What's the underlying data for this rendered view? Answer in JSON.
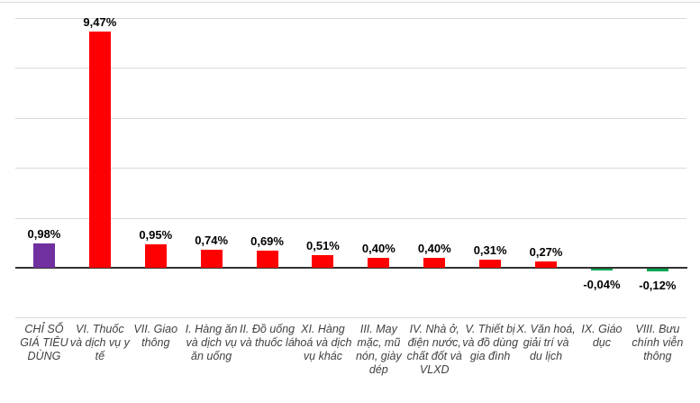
{
  "chart_data": {
    "type": "bar",
    "title": "",
    "xlabel": "",
    "ylabel": "",
    "categories": [
      "CHỈ SỐ GIÁ TIÊU DÙNG",
      "VI. Thuốc và dịch vụ y tế",
      "VII. Giao thông",
      "I. Hàng ăn và dịch vụ ăn uống",
      "II. Đồ uống và thuốc lá",
      "XI. Hàng hoá và dịch vụ khác",
      "III. May mặc, mũ nón, giày dép",
      "IV. Nhà ở, điện nước, chất đốt và VLXD",
      "V. Thiết bị và đồ dùng gia đình",
      "X. Văn hoá, giải trí và du lịch",
      "IX. Giáo dục",
      "VIII. Bưu chính viễn thông"
    ],
    "values": [
      0.98,
      9.47,
      0.95,
      0.74,
      0.69,
      0.51,
      0.4,
      0.4,
      0.31,
      0.27,
      -0.04,
      -0.12
    ],
    "value_labels": [
      "0,98%",
      "9,47%",
      "0,95%",
      "0,74%",
      "0,69%",
      "0,51%",
      "0,40%",
      "0,40%",
      "0,31%",
      "0,27%",
      "-0,04%",
      "-0,12%"
    ],
    "bar_colors": [
      "#7030A0",
      "#FF0000",
      "#FF0000",
      "#FF0000",
      "#FF0000",
      "#FF0000",
      "#FF0000",
      "#FF0000",
      "#FF0000",
      "#FF0000",
      "#00A651",
      "#00A651"
    ],
    "ylim": [
      -2,
      10.7
    ],
    "gridline_values": [
      10,
      8,
      6,
      4,
      2,
      -2
    ],
    "grid": true,
    "legend_position": "none"
  },
  "colors": {
    "total_bar": "#7030A0",
    "positive_bar": "#FF0000",
    "negative_bar": "#00A651",
    "gridline": "#d9d9d9",
    "axis": "#333333",
    "value_text": "#000000",
    "category_text": "#404040"
  }
}
